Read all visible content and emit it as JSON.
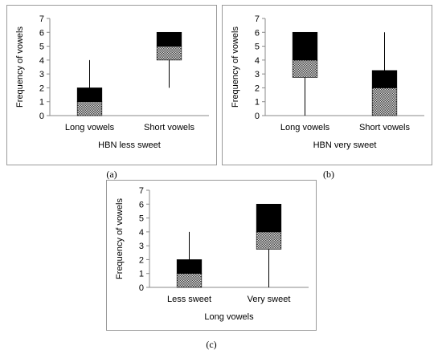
{
  "chart_data": [
    {
      "type": "boxplot",
      "caption": "(a)",
      "xlabel": "HBN less sweet",
      "ylabel": "Frequency of vowels",
      "ylim": [
        0,
        7
      ],
      "yticks": [
        0,
        1,
        2,
        3,
        4,
        5,
        6,
        7
      ],
      "categories": [
        "Long vowels",
        "Short vowels"
      ],
      "boxes": [
        {
          "min": 0,
          "q1": 0,
          "median": 1,
          "q3": 2,
          "max": 4
        },
        {
          "min": 2,
          "q1": 4,
          "median": 5,
          "q3": 6,
          "max": 6
        }
      ]
    },
    {
      "type": "boxplot",
      "caption": "(b)",
      "xlabel": "HBN very sweet",
      "ylabel": "Frequency of vowels",
      "ylim": [
        0,
        7
      ],
      "yticks": [
        0,
        1,
        2,
        3,
        4,
        5,
        6,
        7
      ],
      "categories": [
        "Long vowels",
        "Short vowels"
      ],
      "boxes": [
        {
          "min": 0,
          "q1": 2.75,
          "median": 4,
          "q3": 6,
          "max": 6
        },
        {
          "min": 0,
          "q1": 0,
          "median": 2,
          "q3": 3.25,
          "max": 6
        }
      ]
    },
    {
      "type": "boxplot",
      "caption": "(c)",
      "xlabel": "Long vowels",
      "ylabel": "Frequency of vowels",
      "ylim": [
        0,
        7
      ],
      "yticks": [
        0,
        1,
        2,
        3,
        4,
        5,
        6,
        7
      ],
      "categories": [
        "Less sweet",
        "Very sweet"
      ],
      "boxes": [
        {
          "min": 0,
          "q1": 0,
          "median": 1,
          "q3": 2,
          "max": 4
        },
        {
          "min": 0,
          "q1": 2.75,
          "median": 4,
          "q3": 6,
          "max": 6
        }
      ]
    }
  ]
}
